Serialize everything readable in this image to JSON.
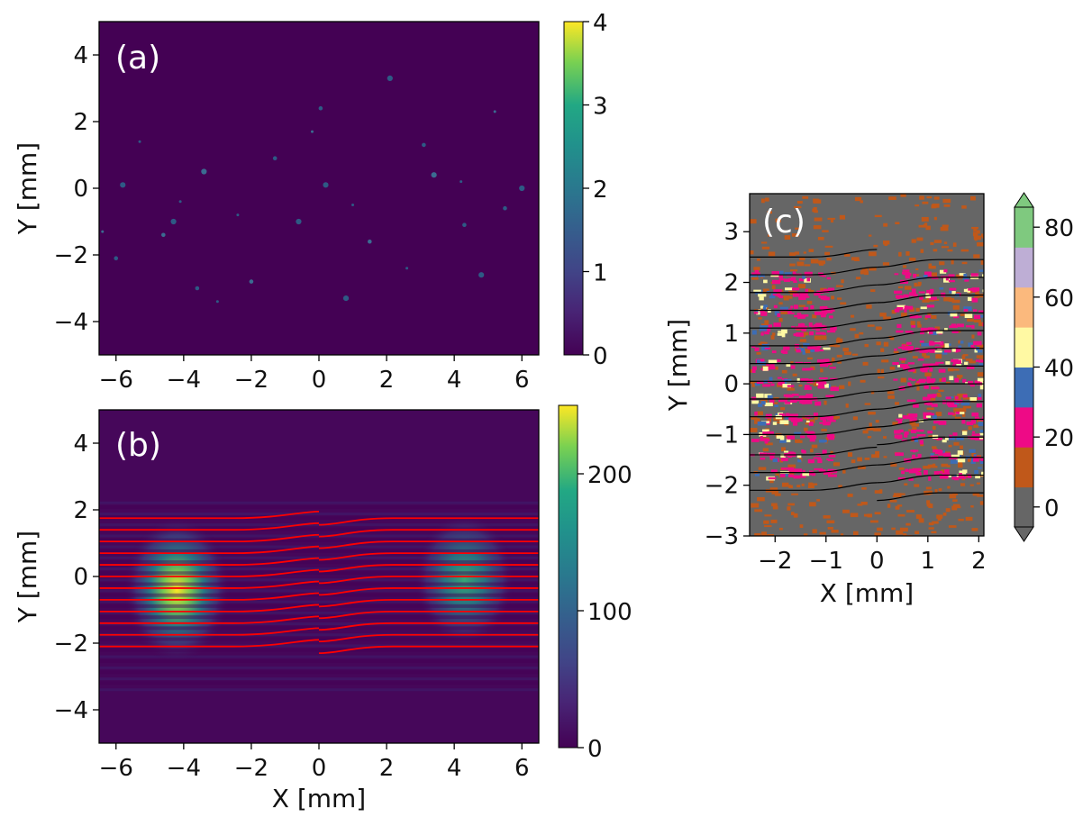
{
  "chart_data": [
    {
      "panel": "(a)",
      "type": "heatmap",
      "xlabel": "",
      "ylabel": "Y [mm]",
      "xlim": [
        -6.5,
        6.5
      ],
      "ylim": [
        -5,
        5
      ],
      "xticks": [
        -6,
        -4,
        -2,
        0,
        2,
        4,
        6
      ],
      "yticks": [
        -4,
        -2,
        0,
        2,
        4
      ],
      "colormap": "viridis",
      "colorbar": {
        "min": 0,
        "max": 4,
        "ticks": [
          0,
          1,
          2,
          3,
          4
        ]
      },
      "background_value": 0,
      "spots": [
        {
          "x": -6.4,
          "y": -1.3
        },
        {
          "x": -6.0,
          "y": -2.1
        },
        {
          "x": -5.8,
          "y": 0.1
        },
        {
          "x": -5.3,
          "y": 1.4
        },
        {
          "x": -4.6,
          "y": -1.4
        },
        {
          "x": -4.3,
          "y": -1.0
        },
        {
          "x": -4.1,
          "y": -0.4
        },
        {
          "x": -3.6,
          "y": -3.0
        },
        {
          "x": -3.4,
          "y": 0.5
        },
        {
          "x": -2.4,
          "y": -0.8
        },
        {
          "x": -1.3,
          "y": 0.9
        },
        {
          "x": -0.6,
          "y": -1.0
        },
        {
          "x": -0.2,
          "y": 1.7
        },
        {
          "x": 0.05,
          "y": 2.4
        },
        {
          "x": 0.2,
          "y": 0.1
        },
        {
          "x": 1.0,
          "y": -0.5
        },
        {
          "x": 1.5,
          "y": -1.6
        },
        {
          "x": 2.1,
          "y": 3.3
        },
        {
          "x": 2.6,
          "y": -2.4
        },
        {
          "x": 3.1,
          "y": 1.3
        },
        {
          "x": 3.4,
          "y": 0.4
        },
        {
          "x": 4.2,
          "y": 0.2
        },
        {
          "x": 4.3,
          "y": -1.1
        },
        {
          "x": 4.8,
          "y": -2.6
        },
        {
          "x": 5.2,
          "y": 2.3
        },
        {
          "x": 5.5,
          "y": -0.6
        },
        {
          "x": 6.0,
          "y": 0.0
        },
        {
          "x": -3.0,
          "y": -3.4
        },
        {
          "x": -2.0,
          "y": -2.8
        },
        {
          "x": 0.8,
          "y": -3.3
        }
      ]
    },
    {
      "panel": "(b)",
      "type": "heatmap",
      "xlabel": "X [mm]",
      "ylabel": "Y [mm]",
      "xlim": [
        -6.5,
        6.5
      ],
      "ylim": [
        -5,
        5
      ],
      "xticks": [
        -6,
        -4,
        -2,
        0,
        2,
        4,
        6
      ],
      "yticks": [
        -4,
        -2,
        0,
        2,
        4
      ],
      "colormap": "viridis",
      "colorbar": {
        "min": 0,
        "max": 250,
        "ticks": [
          0,
          100,
          200
        ]
      },
      "beams": [
        {
          "center_x": -4.2,
          "center_y": -0.4,
          "width_x": 1.6,
          "width_y": 2.2,
          "peak": 250
        },
        {
          "center_x": 4.3,
          "center_y": -0.1,
          "width_x": 1.5,
          "width_y": 2.0,
          "peak": 140
        }
      ],
      "fringe_period": 0.33,
      "trajectories": {
        "color": "#ff0000",
        "left_y": [
          1.75,
          1.4,
          1.05,
          0.7,
          0.35,
          0.0,
          -0.35,
          -0.7,
          -1.05,
          -1.4,
          -1.75,
          -2.1
        ],
        "right_y": [
          1.75,
          1.4,
          1.05,
          0.7,
          0.35,
          0.0,
          -0.35,
          -0.7,
          -1.05,
          -1.4,
          -1.75,
          -2.1
        ],
        "left_x": [
          -6.5,
          0.0
        ],
        "right_x": [
          0.0,
          6.5
        ],
        "left_end_y": [
          1.95,
          1.6,
          1.25,
          0.9,
          0.55,
          0.2,
          -0.15,
          -0.5,
          -0.85,
          -1.2,
          -1.55,
          -1.9
        ],
        "right_start_y": [
          1.55,
          1.2,
          0.85,
          0.5,
          0.15,
          -0.2,
          -0.55,
          -0.9,
          -1.25,
          -1.6,
          -1.95,
          -2.3
        ]
      }
    },
    {
      "panel": "(c)",
      "type": "heatmap",
      "xlabel": "X [mm]",
      "ylabel": "Y [mm]",
      "xlim": [
        -2.5,
        2.1
      ],
      "ylim": [
        -3,
        3.75
      ],
      "xticks": [
        -2,
        -1,
        0,
        1,
        2
      ],
      "yticks": [
        -3,
        -2,
        -1,
        0,
        1,
        2,
        3
      ],
      "colormap": "discrete",
      "colorbar": {
        "levels": [
          0,
          10,
          20,
          30,
          40,
          50,
          60,
          70,
          80,
          90
        ],
        "ticks": [
          0,
          20,
          40,
          60,
          80
        ],
        "colors": [
          "#666666",
          "#c0581a",
          "#ee0a86",
          "#3d6db5",
          "#fff9a3",
          "#fbb97d",
          "#beaed5",
          "#7fc97f"
        ],
        "extend": "both"
      },
      "trajectories": {
        "color": "#000000",
        "left_y": [
          2.5,
          2.15,
          1.8,
          1.45,
          1.1,
          0.75,
          0.4,
          0.05,
          -0.3,
          -0.65,
          -1.0,
          -1.4,
          -1.75,
          -2.1
        ],
        "left_end_y": [
          2.65,
          2.3,
          1.95,
          1.6,
          1.25,
          0.9,
          0.55,
          0.2,
          -0.15,
          -0.5,
          -0.85,
          -1.25,
          -1.6,
          -1.95
        ],
        "right_start_y": [
          2.3,
          1.95,
          1.6,
          1.25,
          0.9,
          0.55,
          0.2,
          -0.15,
          -0.5,
          -0.85,
          -1.2,
          -1.6,
          -1.95,
          -2.3
        ],
        "right_y": [
          2.45,
          2.1,
          1.75,
          1.4,
          1.05,
          0.7,
          0.35,
          0.0,
          -0.35,
          -0.7,
          -1.05,
          -1.45,
          -1.8,
          -2.15
        ]
      }
    }
  ],
  "labels": {
    "a": "(a)",
    "b": "(b)",
    "c": "(c)",
    "y_mm": "Y [mm]",
    "x_mm": "X [mm]"
  }
}
